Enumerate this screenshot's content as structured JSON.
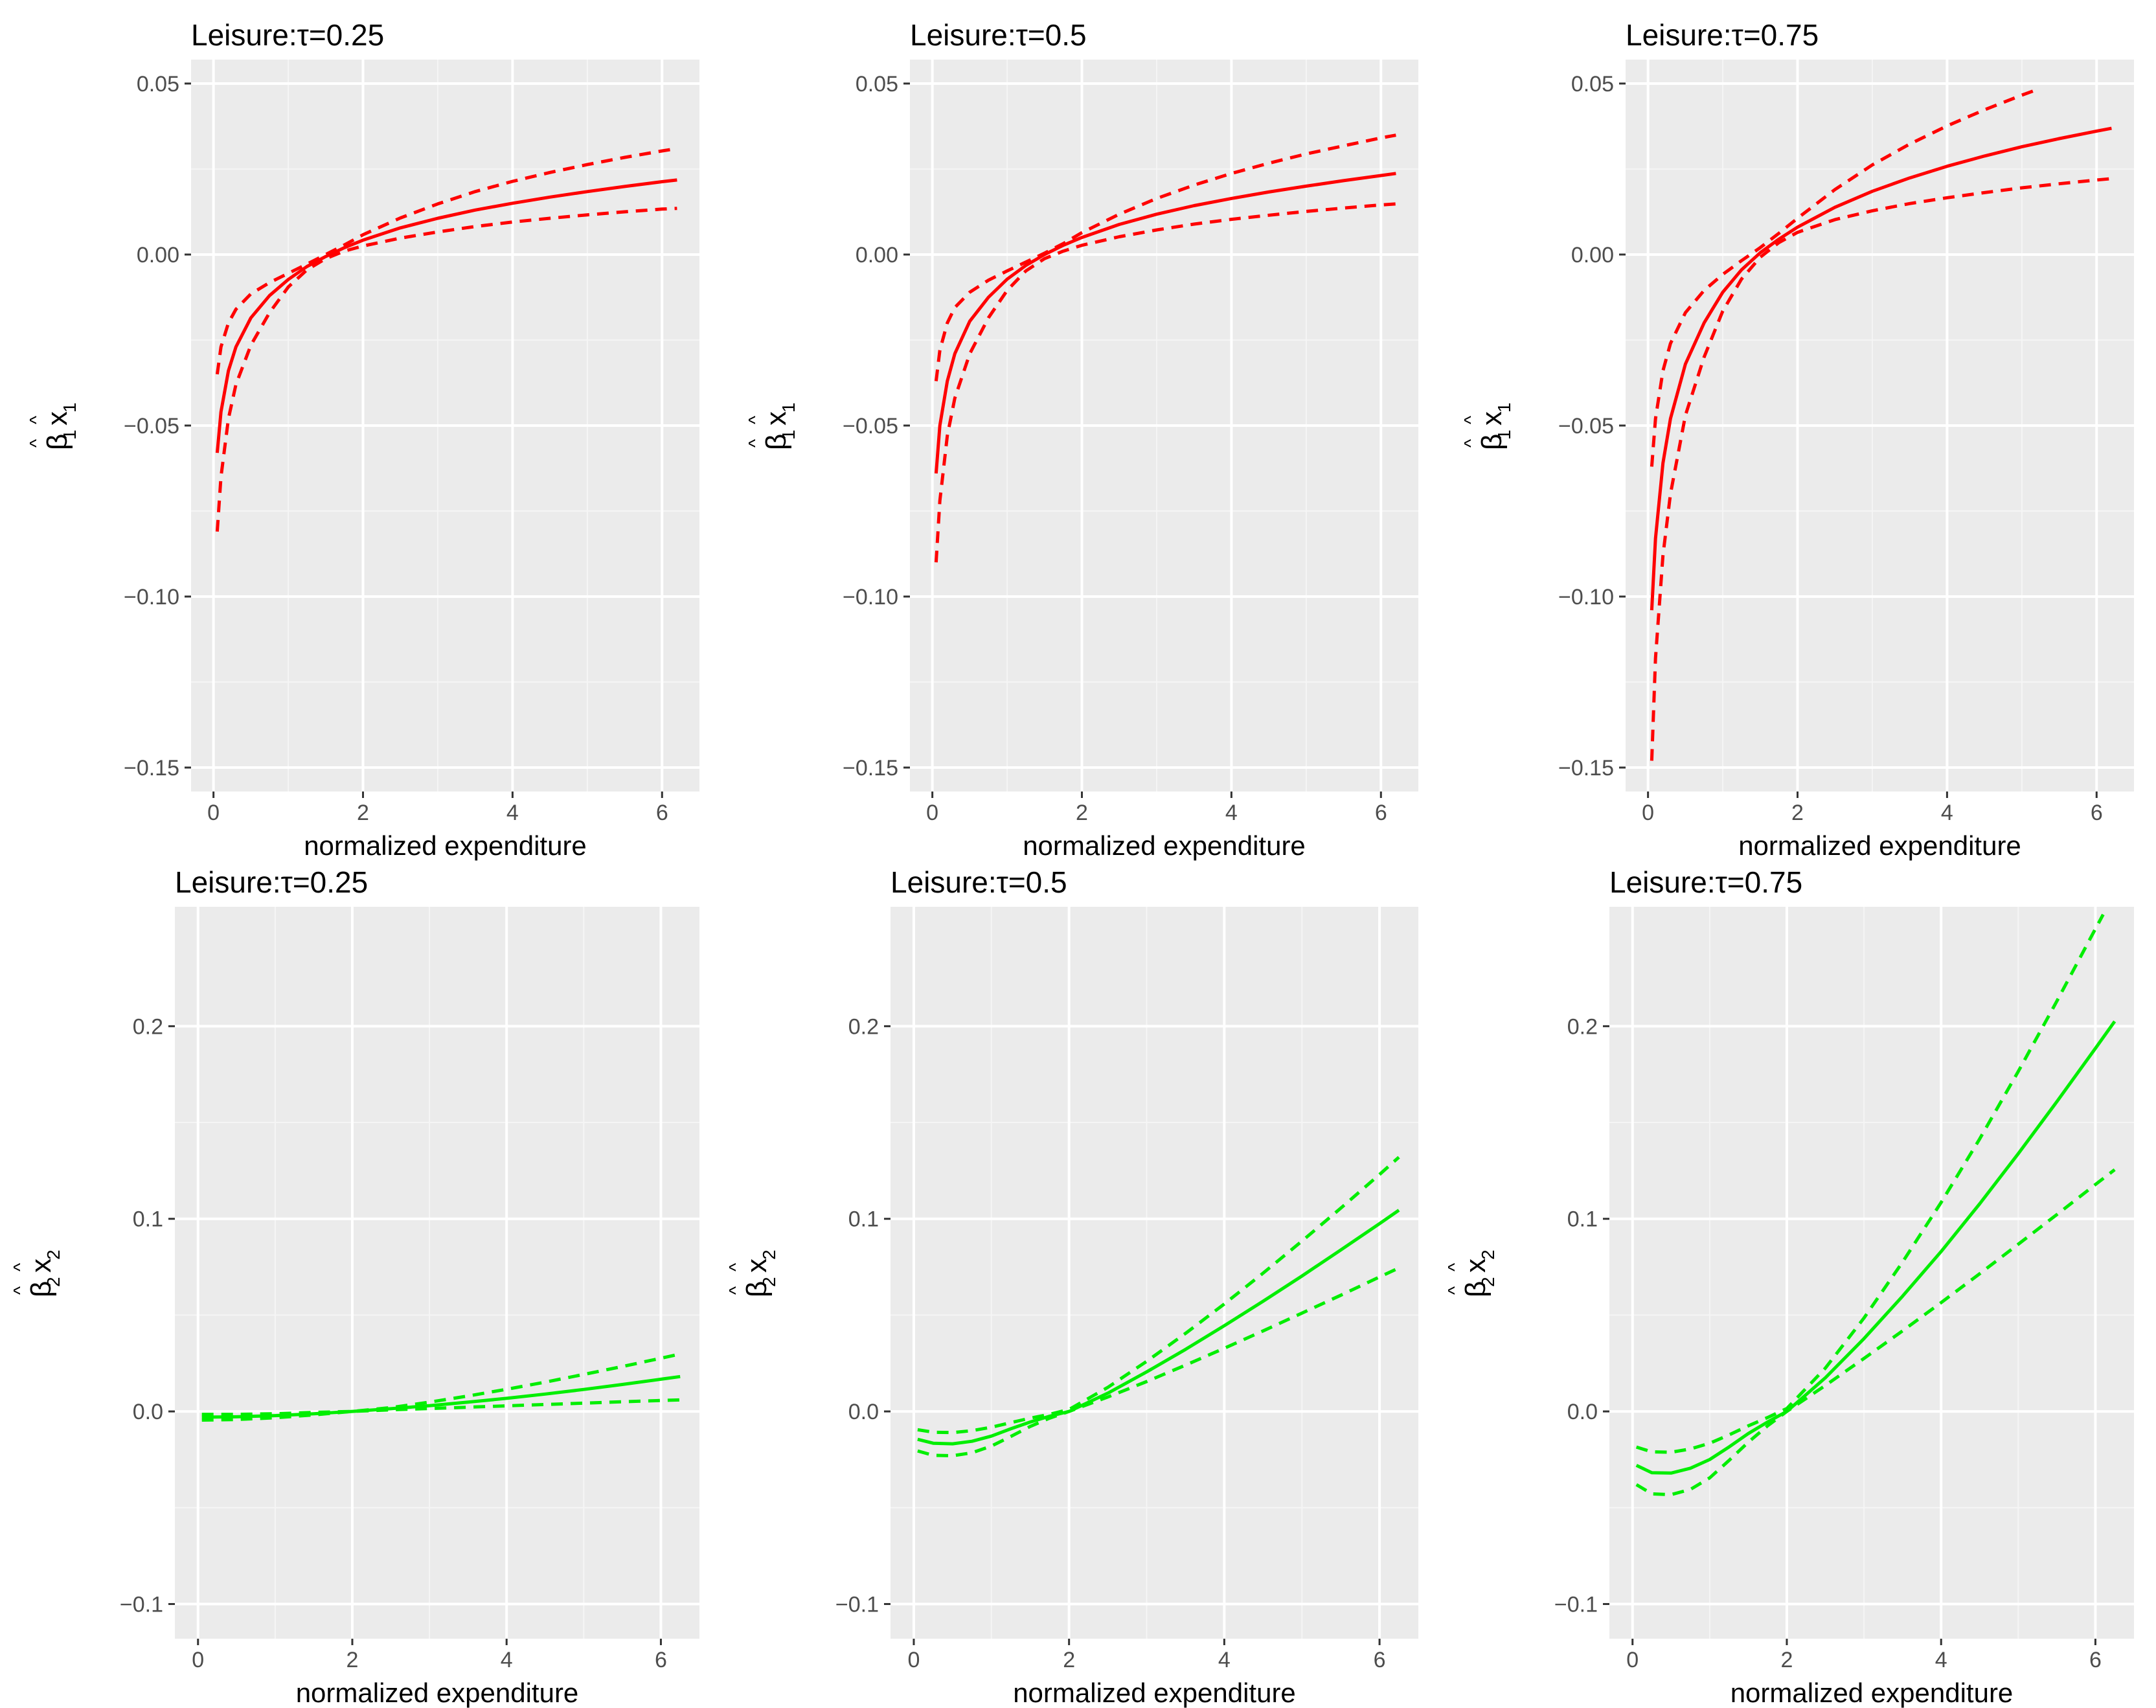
{
  "chart_data": [
    {
      "type": "line",
      "title": "Leisure:τ=0.25",
      "xlabel": "normalized expenditure",
      "ylabel": {
        "beta": "β",
        "x": "x",
        "hat": "^",
        "subscript": "1"
      },
      "xlim": [
        -0.3,
        6.5
      ],
      "ylim": [
        -0.157,
        0.057
      ],
      "xticks": [
        0,
        2,
        4,
        6
      ],
      "yticks": [
        -0.15,
        -0.1,
        -0.05,
        0.0,
        0.05
      ],
      "ytick_labels": [
        "−0.15",
        "−0.10",
        "−0.05",
        "0.00",
        "0.05"
      ],
      "grid": true,
      "color": "#ff0000",
      "series": [
        {
          "name": "estimate",
          "style": "solid",
          "x": [
            0.05,
            0.1,
            0.2,
            0.3,
            0.5,
            0.75,
            1.0,
            1.25,
            1.5,
            1.75,
            2.0,
            2.5,
            3.0,
            3.5,
            4.0,
            4.5,
            5.0,
            5.5,
            6.0,
            6.2
          ],
          "y": [
            -0.058,
            -0.046,
            -0.034,
            -0.027,
            -0.0185,
            -0.012,
            -0.0073,
            -0.0035,
            -0.0006,
            0.002,
            0.0042,
            0.0078,
            0.0106,
            0.013,
            0.015,
            0.0168,
            0.0184,
            0.0199,
            0.0213,
            0.0218
          ]
        },
        {
          "name": "upper band",
          "style": "dashed",
          "x": [
            0.05,
            0.1,
            0.2,
            0.3,
            0.5,
            0.75,
            1.0,
            1.25,
            1.5,
            1.75,
            2.0,
            2.5,
            3.0,
            3.5,
            4.0,
            4.5,
            5.0,
            5.5,
            6.0,
            6.2
          ],
          "y": [
            -0.035,
            -0.027,
            -0.02,
            -0.016,
            -0.0115,
            -0.0082,
            -0.0055,
            -0.0028,
            0.0,
            0.0028,
            0.0058,
            0.0107,
            0.0148,
            0.0184,
            0.0214,
            0.024,
            0.0263,
            0.0284,
            0.0303,
            0.031
          ]
        },
        {
          "name": "lower band",
          "style": "dashed",
          "x": [
            0.05,
            0.1,
            0.2,
            0.3,
            0.5,
            0.75,
            1.0,
            1.25,
            1.5,
            1.75,
            2.0,
            2.5,
            3.0,
            3.5,
            4.0,
            4.5,
            5.0,
            5.5,
            6.0,
            6.2
          ],
          "y": [
            -0.081,
            -0.065,
            -0.048,
            -0.038,
            -0.0265,
            -0.017,
            -0.0095,
            -0.0045,
            -0.0012,
            0.001,
            0.0025,
            0.0048,
            0.0066,
            0.0082,
            0.0095,
            0.0106,
            0.0116,
            0.0125,
            0.0133,
            0.0135
          ]
        }
      ]
    },
    {
      "type": "line",
      "title": "Leisure:τ=0.5",
      "xlabel": "normalized expenditure",
      "ylabel": {
        "beta": "β",
        "x": "x",
        "hat": "^",
        "subscript": "1"
      },
      "xlim": [
        -0.3,
        6.5
      ],
      "ylim": [
        -0.157,
        0.057
      ],
      "xticks": [
        0,
        2,
        4,
        6
      ],
      "yticks": [
        -0.15,
        -0.1,
        -0.05,
        0.0,
        0.05
      ],
      "ytick_labels": [
        "−0.15",
        "−0.10",
        "−0.05",
        "0.00",
        "0.05"
      ],
      "grid": true,
      "color": "#ff0000",
      "series": [
        {
          "name": "estimate",
          "style": "solid",
          "x": [
            0.05,
            0.1,
            0.2,
            0.3,
            0.5,
            0.75,
            1.0,
            1.25,
            1.5,
            1.75,
            2.0,
            2.5,
            3.0,
            3.5,
            4.0,
            4.5,
            5.0,
            5.5,
            6.0,
            6.2
          ],
          "y": [
            -0.064,
            -0.05,
            -0.037,
            -0.029,
            -0.0195,
            -0.0125,
            -0.0072,
            -0.0032,
            0.0,
            0.0027,
            0.005,
            0.0088,
            0.0118,
            0.0143,
            0.0164,
            0.0183,
            0.02,
            0.0216,
            0.0231,
            0.0237
          ]
        },
        {
          "name": "upper band",
          "style": "dashed",
          "x": [
            0.05,
            0.1,
            0.2,
            0.3,
            0.5,
            0.75,
            1.0,
            1.25,
            1.5,
            1.75,
            2.0,
            2.5,
            3.0,
            3.5,
            4.0,
            4.5,
            5.0,
            5.5,
            6.0,
            6.2
          ],
          "y": [
            -0.037,
            -0.028,
            -0.02,
            -0.0155,
            -0.011,
            -0.0075,
            -0.0048,
            -0.0022,
            0.0004,
            0.0032,
            0.0064,
            0.0118,
            0.0164,
            0.0203,
            0.0237,
            0.0267,
            0.0294,
            0.0318,
            0.0341,
            0.0349
          ]
        },
        {
          "name": "lower band",
          "style": "dashed",
          "x": [
            0.05,
            0.1,
            0.2,
            0.3,
            0.5,
            0.75,
            1.0,
            1.25,
            1.5,
            1.75,
            2.0,
            2.5,
            3.0,
            3.5,
            4.0,
            4.5,
            5.0,
            5.5,
            6.0,
            6.2
          ],
          "y": [
            -0.09,
            -0.072,
            -0.053,
            -0.042,
            -0.029,
            -0.0185,
            -0.0105,
            -0.0048,
            -0.0012,
            0.001,
            0.0027,
            0.0052,
            0.0072,
            0.0089,
            0.0103,
            0.0115,
            0.0126,
            0.0136,
            0.0145,
            0.0148
          ]
        }
      ]
    },
    {
      "type": "line",
      "title": "Leisure:τ=0.75",
      "xlabel": "normalized expenditure",
      "ylabel": {
        "beta": "β",
        "x": "x",
        "hat": "^",
        "subscript": "1"
      },
      "xlim": [
        -0.3,
        6.5
      ],
      "ylim": [
        -0.157,
        0.057
      ],
      "xticks": [
        0,
        2,
        4,
        6
      ],
      "yticks": [
        -0.15,
        -0.1,
        -0.05,
        0.0,
        0.05
      ],
      "ytick_labels": [
        "−0.15",
        "−0.10",
        "−0.05",
        "0.00",
        "0.05"
      ],
      "grid": true,
      "color": "#ff0000",
      "series": [
        {
          "name": "estimate",
          "style": "solid",
          "x": [
            0.05,
            0.1,
            0.2,
            0.3,
            0.5,
            0.75,
            1.0,
            1.25,
            1.5,
            1.75,
            2.0,
            2.5,
            3.0,
            3.5,
            4.0,
            4.5,
            5.0,
            5.5,
            6.0,
            6.2
          ],
          "y": [
            -0.104,
            -0.083,
            -0.061,
            -0.048,
            -0.032,
            -0.02,
            -0.011,
            -0.0045,
            0.0005,
            0.0045,
            0.008,
            0.0138,
            0.0185,
            0.0224,
            0.0258,
            0.0288,
            0.0315,
            0.0339,
            0.0361,
            0.0369
          ]
        },
        {
          "name": "upper band",
          "style": "dashed",
          "x": [
            0.05,
            0.1,
            0.2,
            0.3,
            0.5,
            0.75,
            1.0,
            1.25,
            1.5,
            1.75,
            2.0,
            2.5,
            3.0,
            3.5,
            4.0,
            4.5,
            5.0,
            5.2
          ],
          "y": [
            -0.062,
            -0.048,
            -0.034,
            -0.026,
            -0.017,
            -0.0105,
            -0.0058,
            -0.0018,
            0.002,
            0.0062,
            0.0106,
            0.019,
            0.0262,
            0.0323,
            0.0376,
            0.0423,
            0.0466,
            0.0482
          ]
        },
        {
          "name": "lower band",
          "style": "dashed",
          "x": [
            0.05,
            0.1,
            0.2,
            0.3,
            0.5,
            0.75,
            1.0,
            1.25,
            1.5,
            1.75,
            2.0,
            2.5,
            3.0,
            3.5,
            4.0,
            4.5,
            5.0,
            5.5,
            6.0,
            6.2
          ],
          "y": [
            -0.148,
            -0.118,
            -0.088,
            -0.07,
            -0.047,
            -0.03,
            -0.0165,
            -0.0072,
            -0.0008,
            0.0035,
            0.0065,
            0.0102,
            0.0128,
            0.0149,
            0.0166,
            0.0181,
            0.0195,
            0.0207,
            0.0218,
            0.0222
          ]
        }
      ]
    },
    {
      "type": "line",
      "title": "Leisure:τ=0.25",
      "xlabel": "normalized expenditure",
      "ylabel": {
        "beta": "β",
        "x": "x",
        "hat": "^",
        "subscript": "2"
      },
      "xlim": [
        -0.3,
        6.5
      ],
      "ylim": [
        -0.118,
        0.262
      ],
      "xticks": [
        0,
        2,
        4,
        6
      ],
      "yticks": [
        -0.1,
        0.0,
        0.1,
        0.2
      ],
      "ytick_labels": [
        "−0.1",
        "0.0",
        "0.1",
        "0.2"
      ],
      "grid": true,
      "color": "#00ee00",
      "series": [
        {
          "name": "estimate",
          "style": "solid",
          "x": [
            0.05,
            0.5,
            1.0,
            1.5,
            2.0,
            2.5,
            3.0,
            3.5,
            4.0,
            4.5,
            5.0,
            5.5,
            6.0,
            6.25
          ],
          "y": [
            -0.003,
            -0.0028,
            -0.0022,
            -0.0012,
            0.0,
            0.0014,
            0.003,
            0.0048,
            0.0068,
            0.009,
            0.0114,
            0.014,
            0.0167,
            0.0181
          ]
        },
        {
          "name": "upper band",
          "style": "dashed",
          "x": [
            0.05,
            0.5,
            1.0,
            1.5,
            2.0,
            2.5,
            3.0,
            3.5,
            4.0,
            4.5,
            5.0,
            5.5,
            6.0,
            6.25
          ],
          "y": [
            -0.0015,
            -0.0015,
            -0.0012,
            -0.0005,
            0.0,
            0.002,
            0.0048,
            0.008,
            0.0115,
            0.0152,
            0.0192,
            0.0233,
            0.0276,
            0.0298
          ]
        },
        {
          "name": "lower band",
          "style": "dashed",
          "x": [
            0.05,
            0.5,
            1.0,
            1.5,
            2.0,
            2.5,
            3.0,
            3.5,
            4.0,
            4.5,
            5.0,
            5.5,
            6.0,
            6.25
          ],
          "y": [
            -0.0045,
            -0.0042,
            -0.0033,
            -0.0018,
            0.0,
            0.0008,
            0.0015,
            0.0022,
            0.0029,
            0.0036,
            0.0043,
            0.005,
            0.0057,
            0.006
          ]
        }
      ]
    },
    {
      "type": "line",
      "title": "Leisure:τ=0.5",
      "xlabel": "normalized expenditure",
      "ylabel": {
        "beta": "β",
        "x": "x",
        "hat": "^",
        "subscript": "2"
      },
      "xlim": [
        -0.3,
        6.5
      ],
      "ylim": [
        -0.118,
        0.262
      ],
      "xticks": [
        0,
        2,
        4,
        6
      ],
      "yticks": [
        -0.1,
        0.0,
        0.1,
        0.2
      ],
      "ytick_labels": [
        "−0.1",
        "0.0",
        "0.1",
        "0.2"
      ],
      "grid": true,
      "color": "#00ee00",
      "series": [
        {
          "name": "estimate",
          "style": "solid",
          "x": [
            0.05,
            0.25,
            0.5,
            0.75,
            1.0,
            1.25,
            1.5,
            1.75,
            2.0,
            2.5,
            3.0,
            3.5,
            4.0,
            4.5,
            5.0,
            5.5,
            6.0,
            6.25
          ],
          "y": [
            -0.0145,
            -0.0165,
            -0.0168,
            -0.0155,
            -0.0128,
            -0.009,
            -0.0055,
            -0.0025,
            0.0,
            0.0095,
            0.0205,
            0.0322,
            0.0445,
            0.0572,
            0.0703,
            0.0838,
            0.0975,
            0.1045
          ]
        },
        {
          "name": "upper band",
          "style": "dashed",
          "x": [
            0.05,
            0.25,
            0.5,
            0.75,
            1.0,
            1.25,
            1.5,
            1.75,
            2.0,
            2.5,
            3.0,
            3.5,
            4.0,
            4.5,
            5.0,
            5.5,
            6.0,
            6.25
          ],
          "y": [
            -0.0095,
            -0.0108,
            -0.011,
            -0.01,
            -0.0082,
            -0.0058,
            -0.0035,
            -0.0015,
            0.001,
            0.0125,
            0.026,
            0.0405,
            0.0558,
            0.0718,
            0.0884,
            0.1055,
            0.123,
            0.132
          ]
        },
        {
          "name": "lower band",
          "style": "dashed",
          "x": [
            0.05,
            0.25,
            0.5,
            0.75,
            1.0,
            1.25,
            1.5,
            1.75,
            2.0,
            2.5,
            3.0,
            3.5,
            4.0,
            4.5,
            5.0,
            5.5,
            6.0,
            6.25
          ],
          "y": [
            -0.0205,
            -0.0228,
            -0.023,
            -0.0215,
            -0.018,
            -0.013,
            -0.0078,
            -0.0035,
            0.0,
            0.0075,
            0.0155,
            0.024,
            0.0328,
            0.0418,
            0.051,
            0.0603,
            0.0698,
            0.0745
          ]
        }
      ]
    },
    {
      "type": "line",
      "title": "Leisure:τ=0.75",
      "xlabel": "normalized expenditure",
      "ylabel": {
        "beta": "β",
        "x": "x",
        "hat": "^",
        "subscript": "2"
      },
      "xlim": [
        -0.3,
        6.5
      ],
      "ylim": [
        -0.118,
        0.262
      ],
      "xticks": [
        0,
        2,
        4,
        6
      ],
      "yticks": [
        -0.1,
        0.0,
        0.1,
        0.2
      ],
      "ytick_labels": [
        "−0.1",
        "0.0",
        "0.1",
        "0.2"
      ],
      "grid": true,
      "color": "#00ee00",
      "series": [
        {
          "name": "estimate",
          "style": "solid",
          "x": [
            0.05,
            0.25,
            0.5,
            0.75,
            1.0,
            1.25,
            1.5,
            1.75,
            2.0,
            2.5,
            3.0,
            3.5,
            4.0,
            4.5,
            5.0,
            5.5,
            6.0,
            6.25
          ],
          "y": [
            -0.028,
            -0.0318,
            -0.032,
            -0.0295,
            -0.025,
            -0.0185,
            -0.0115,
            -0.0055,
            0.0,
            0.0175,
            0.0378,
            0.0598,
            0.083,
            0.1078,
            0.1338,
            0.1608,
            0.1885,
            0.2025
          ]
        },
        {
          "name": "upper band",
          "style": "dashed",
          "x": [
            0.05,
            0.25,
            0.5,
            0.75,
            1.0,
            1.25,
            1.5,
            1.75,
            2.0,
            2.5,
            3.0,
            3.5,
            4.0,
            4.5,
            5.0,
            5.5,
            6.0,
            6.1
          ],
          "y": [
            -0.0185,
            -0.021,
            -0.0212,
            -0.0195,
            -0.0165,
            -0.0122,
            -0.0075,
            -0.0032,
            0.0015,
            0.0225,
            0.0485,
            0.0775,
            0.1085,
            0.1415,
            0.1765,
            0.213,
            0.2505,
            0.258
          ]
        },
        {
          "name": "lower band",
          "style": "dashed",
          "x": [
            0.05,
            0.25,
            0.5,
            0.75,
            1.0,
            1.25,
            1.5,
            1.75,
            2.0,
            2.5,
            3.0,
            3.5,
            4.0,
            4.5,
            5.0,
            5.5,
            6.0,
            6.25
          ],
          "y": [
            -0.038,
            -0.0428,
            -0.0432,
            -0.0405,
            -0.0345,
            -0.0255,
            -0.016,
            -0.0075,
            0.0,
            0.0135,
            0.0275,
            0.0418,
            0.0565,
            0.0715,
            0.0868,
            0.1022,
            0.1178,
            0.1255
          ]
        }
      ]
    }
  ]
}
